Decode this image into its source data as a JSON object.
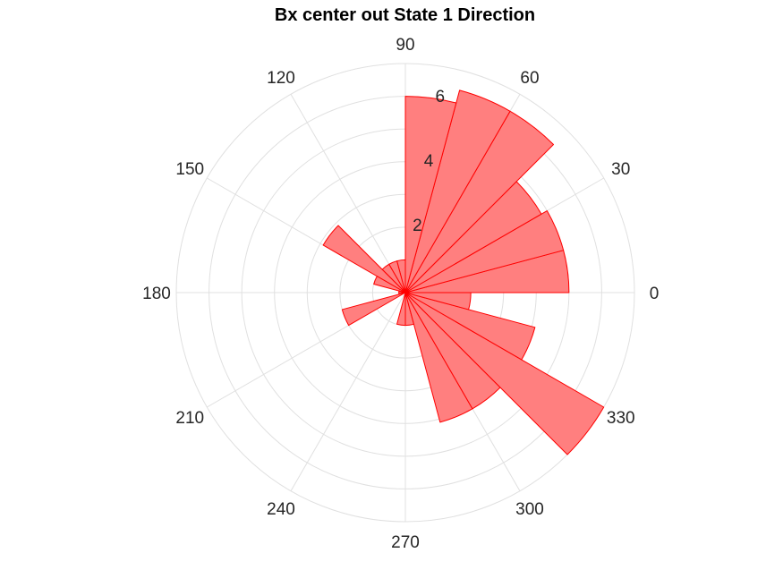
{
  "chart_data": {
    "type": "polar-histogram",
    "title": "Bx  center out State 1 Direction",
    "bin_width_deg": 15,
    "rlim": [
      0,
      7
    ],
    "grid": true,
    "radius_ticks": [
      2,
      4,
      6
    ],
    "angle_ticks": [
      0,
      30,
      60,
      90,
      120,
      150,
      180,
      210,
      240,
      270,
      300,
      330
    ],
    "bins": [
      {
        "start": 0,
        "end": 15,
        "value": 5.0
      },
      {
        "start": 15,
        "end": 30,
        "value": 5.0
      },
      {
        "start": 30,
        "end": 45,
        "value": 4.8
      },
      {
        "start": 45,
        "end": 60,
        "value": 6.4
      },
      {
        "start": 60,
        "end": 75,
        "value": 6.4
      },
      {
        "start": 75,
        "end": 90,
        "value": 6.0
      },
      {
        "start": 90,
        "end": 105,
        "value": 1.0
      },
      {
        "start": 105,
        "end": 120,
        "value": 1.0
      },
      {
        "start": 120,
        "end": 135,
        "value": 1.0
      },
      {
        "start": 135,
        "end": 150,
        "value": 2.9
      },
      {
        "start": 150,
        "end": 165,
        "value": 1.0
      },
      {
        "start": 165,
        "end": 180,
        "value": 0.2
      },
      {
        "start": 180,
        "end": 195,
        "value": 0.2
      },
      {
        "start": 195,
        "end": 210,
        "value": 2.0
      },
      {
        "start": 210,
        "end": 225,
        "value": 0.0
      },
      {
        "start": 225,
        "end": 240,
        "value": 0.0
      },
      {
        "start": 240,
        "end": 255,
        "value": 0.0
      },
      {
        "start": 255,
        "end": 270,
        "value": 1.0
      },
      {
        "start": 270,
        "end": 285,
        "value": 1.0
      },
      {
        "start": 285,
        "end": 300,
        "value": 4.1
      },
      {
        "start": 300,
        "end": 315,
        "value": 4.1
      },
      {
        "start": 315,
        "end": 330,
        "value": 7.0
      },
      {
        "start": 330,
        "end": 345,
        "value": 4.1
      },
      {
        "start": 345,
        "end": 360,
        "value": 2.0
      }
    ],
    "colors": {
      "bar_fill": "#ff7f7f",
      "bar_edge": "#ff0000",
      "grid": "#e0e0e0"
    }
  }
}
